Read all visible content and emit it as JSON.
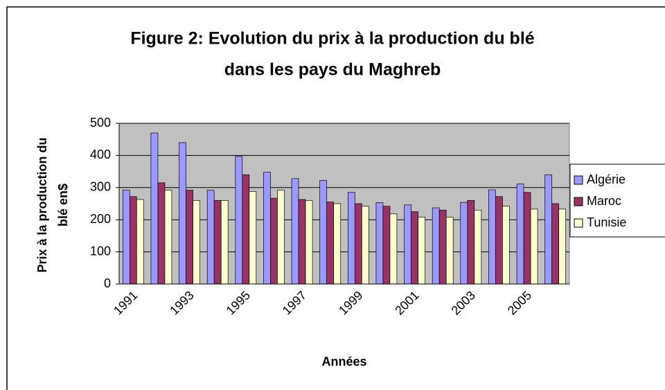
{
  "chart_data": {
    "type": "bar",
    "title": [
      "Figure 2: Evolution du prix à la production du blé",
      "dans les pays du Maghreb"
    ],
    "y_label": [
      "Prix à la production du",
      "blé en$"
    ],
    "x_label": "Années",
    "categories": [
      "1991",
      null,
      "1993",
      null,
      "1995",
      null,
      "1997",
      null,
      "1999",
      null,
      "2001",
      null,
      "2003",
      null,
      "2005",
      null
    ],
    "series": [
      {
        "name": "Algérie",
        "color": "#9999ff",
        "values": [
          292,
          470,
          440,
          292,
          397,
          348,
          328,
          322,
          285,
          253,
          246,
          237,
          254,
          293,
          311,
          340
        ]
      },
      {
        "name": "Maroc",
        "color": "#993366",
        "values": [
          272,
          315,
          292,
          260,
          340,
          267,
          263,
          255,
          250,
          242,
          225,
          230,
          260,
          272,
          285,
          250
        ]
      },
      {
        "name": "Tunisie",
        "color": "#ffffcc",
        "values": [
          263,
          292,
          260,
          260,
          288,
          292,
          260,
          250,
          242,
          218,
          208,
          208,
          230,
          242,
          233,
          233
        ]
      }
    ],
    "ylim": [
      0,
      500
    ],
    "yticks": [
      0,
      100,
      200,
      300,
      400,
      500
    ],
    "grid": true,
    "legend": "right"
  }
}
